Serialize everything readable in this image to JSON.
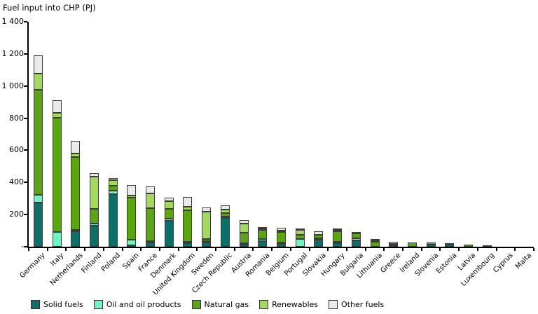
{
  "title": "Fuel input into CHP (PJ)",
  "colors": {
    "solid_fuels": "#0e6f68",
    "oil_and_oil_products": "#70f2c3",
    "natural_gas": "#5ba513",
    "renewables": "#a3d95c",
    "other_fuels": "#eaeaea",
    "axis": "#000000",
    "segment_border": "#3c3c3c"
  },
  "chart_data": {
    "type": "bar",
    "stacked": true,
    "title": "Fuel input into CHP (PJ)",
    "xlabel": "",
    "ylabel": "Fuel input into CHP (PJ)",
    "ylim": [
      0,
      1400
    ],
    "ytick_interval": 200,
    "ytick_labels": [
      "-",
      "200",
      "400",
      "600",
      "800",
      "1 000",
      "1 200",
      "1 400"
    ],
    "grid": false,
    "legend_position": "bottom",
    "categories": [
      "Germany",
      "Italy",
      "Netherlands",
      "Finland",
      "Poland",
      "Spain",
      "France",
      "Denmark",
      "United Kingdom",
      "Sweden",
      "Czech Republic",
      "Austria",
      "Romania",
      "Belgium",
      "Portugal",
      "Slovakia",
      "Hungary",
      "Bulgaria",
      "Lithuania",
      "Greece",
      "Ireland",
      "Slovenia",
      "Estonia",
      "Latvia",
      "Luxembourg",
      "Cyprus",
      "Malta"
    ],
    "series": [
      {
        "name": "Solid fuels",
        "color": "#0e6f68",
        "values": [
          275,
          2,
          95,
          130,
          325,
          10,
          25,
          160,
          20,
          25,
          180,
          15,
          35,
          18,
          1,
          45,
          20,
          40,
          2,
          10,
          2,
          12,
          15,
          1,
          0,
          0,
          0
        ]
      },
      {
        "name": "Oil and oil products",
        "color": "#70f2c3",
        "values": [
          50,
          90,
          5,
          15,
          20,
          35,
          10,
          15,
          10,
          10,
          5,
          5,
          12,
          4,
          48,
          10,
          3,
          13,
          2,
          1,
          1,
          1,
          2,
          1,
          0,
          1,
          0
        ]
      },
      {
        "name": "Natural gas",
        "color": "#5ba513",
        "values": [
          655,
          710,
          455,
          90,
          30,
          260,
          205,
          60,
          195,
          15,
          20,
          65,
          55,
          65,
          27,
          20,
          65,
          30,
          30,
          10,
          27,
          13,
          6,
          15,
          7,
          0,
          0
        ]
      },
      {
        "name": "Renewables",
        "color": "#a3d95c",
        "values": [
          100,
          30,
          20,
          200,
          35,
          15,
          90,
          50,
          20,
          170,
          20,
          55,
          5,
          10,
          30,
          2,
          5,
          2,
          3,
          0,
          1,
          2,
          1,
          2,
          1,
          0,
          0
        ]
      },
      {
        "name": "Other fuels",
        "color": "#eaeaea",
        "values": [
          115,
          80,
          80,
          20,
          15,
          65,
          45,
          20,
          60,
          25,
          25,
          20,
          8,
          18,
          7,
          23,
          8,
          5,
          3,
          11,
          2,
          2,
          1,
          0,
          0,
          0,
          0
        ]
      }
    ]
  }
}
